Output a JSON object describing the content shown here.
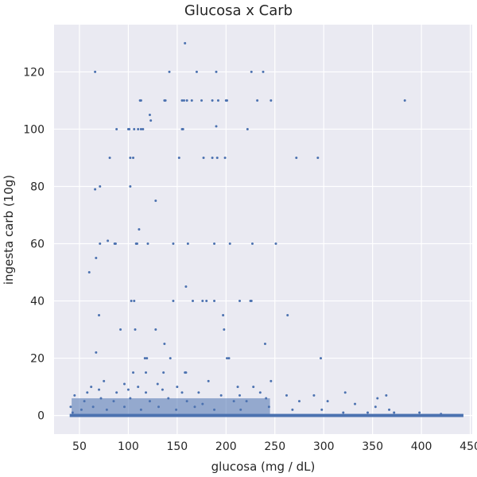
{
  "chart_data": {
    "type": "scatter",
    "title": "Glucosa x Carb",
    "xlabel": "glucosa (mg / dL)",
    "ylabel": "ingesta carb (10g)",
    "xlim": [
      24,
      452
    ],
    "ylim": [
      -6.5,
      136.5
    ],
    "xticks": [
      50,
      100,
      150,
      200,
      250,
      300,
      350,
      400,
      450
    ],
    "yticks": [
      0,
      20,
      40,
      60,
      80,
      100,
      120
    ],
    "grid": true,
    "background_color": "#eaeaf2",
    "marker_color": "#4c72b0",
    "points": [
      [
        66,
        120
      ],
      [
        142,
        120
      ],
      [
        170,
        120
      ],
      [
        190,
        120
      ],
      [
        226,
        120
      ],
      [
        238,
        120
      ],
      [
        158,
        130
      ],
      [
        112,
        110
      ],
      [
        113,
        110
      ],
      [
        137,
        110
      ],
      [
        138,
        110
      ],
      [
        155,
        110
      ],
      [
        157,
        110
      ],
      [
        160,
        110
      ],
      [
        165,
        110
      ],
      [
        175,
        110
      ],
      [
        186,
        110
      ],
      [
        192,
        110
      ],
      [
        200,
        110
      ],
      [
        201,
        110
      ],
      [
        232,
        110
      ],
      [
        246,
        110
      ],
      [
        383,
        110
      ],
      [
        122,
        105
      ],
      [
        123,
        103
      ],
      [
        190,
        101
      ],
      [
        88,
        100
      ],
      [
        100,
        100
      ],
      [
        101,
        100
      ],
      [
        106,
        100
      ],
      [
        110,
        100
      ],
      [
        113,
        100
      ],
      [
        115,
        100
      ],
      [
        155,
        100
      ],
      [
        156,
        100
      ],
      [
        222,
        100
      ],
      [
        81,
        90
      ],
      [
        102,
        90
      ],
      [
        105,
        90
      ],
      [
        152,
        90
      ],
      [
        177,
        90
      ],
      [
        186,
        90
      ],
      [
        191,
        90
      ],
      [
        199,
        90
      ],
      [
        272,
        90
      ],
      [
        294,
        90
      ],
      [
        66,
        79
      ],
      [
        71,
        80
      ],
      [
        102,
        80
      ],
      [
        128,
        75
      ],
      [
        111,
        65
      ],
      [
        71,
        60
      ],
      [
        79,
        61
      ],
      [
        86,
        60
      ],
      [
        87,
        60
      ],
      [
        108,
        60
      ],
      [
        109,
        60
      ],
      [
        120,
        60
      ],
      [
        146,
        60
      ],
      [
        161,
        60
      ],
      [
        188,
        60
      ],
      [
        204,
        60
      ],
      [
        227,
        60
      ],
      [
        251,
        60
      ],
      [
        60,
        50
      ],
      [
        67,
        55
      ],
      [
        159,
        45
      ],
      [
        103,
        40
      ],
      [
        106,
        40
      ],
      [
        146,
        40
      ],
      [
        166,
        40
      ],
      [
        176,
        40
      ],
      [
        180,
        40
      ],
      [
        188,
        40
      ],
      [
        214,
        40
      ],
      [
        225,
        40
      ],
      [
        226,
        40
      ],
      [
        70,
        35
      ],
      [
        197,
        35
      ],
      [
        263,
        35
      ],
      [
        92,
        30
      ],
      [
        107,
        30
      ],
      [
        128,
        30
      ],
      [
        198,
        30
      ],
      [
        137,
        25
      ],
      [
        240,
        25
      ],
      [
        67,
        22
      ],
      [
        117,
        20
      ],
      [
        119,
        20
      ],
      [
        143,
        20
      ],
      [
        201,
        20
      ],
      [
        203,
        20
      ],
      [
        297,
        20
      ],
      [
        105,
        15
      ],
      [
        118,
        15
      ],
      [
        136,
        15
      ],
      [
        158,
        15
      ],
      [
        159,
        15
      ],
      [
        62,
        10
      ],
      [
        75,
        12
      ],
      [
        96,
        11
      ],
      [
        110,
        10
      ],
      [
        130,
        11
      ],
      [
        150,
        10
      ],
      [
        182,
        12
      ],
      [
        212,
        10
      ],
      [
        246,
        12
      ],
      [
        228,
        10
      ],
      [
        45,
        7
      ],
      [
        58,
        8
      ],
      [
        70,
        9
      ],
      [
        88,
        8
      ],
      [
        100,
        9
      ],
      [
        118,
        8
      ],
      [
        135,
        9
      ],
      [
        155,
        8
      ],
      [
        172,
        8
      ],
      [
        195,
        7
      ],
      [
        214,
        7
      ],
      [
        235,
        8
      ],
      [
        262,
        7
      ],
      [
        290,
        7
      ],
      [
        322,
        8
      ],
      [
        355,
        6
      ],
      [
        364,
        7
      ],
      [
        41,
        3
      ],
      [
        55,
        5
      ],
      [
        72,
        6
      ],
      [
        85,
        5
      ],
      [
        102,
        6
      ],
      [
        122,
        5
      ],
      [
        141,
        6
      ],
      [
        160,
        5
      ],
      [
        176,
        4
      ],
      [
        208,
        5
      ],
      [
        221,
        5
      ],
      [
        241,
        6
      ],
      [
        275,
        5
      ],
      [
        304,
        5
      ],
      [
        332,
        4
      ],
      [
        353,
        3
      ],
      [
        367,
        2
      ],
      [
        43,
        1
      ],
      [
        52,
        2
      ],
      [
        64,
        3
      ],
      [
        78,
        2
      ],
      [
        96,
        3
      ],
      [
        113,
        2
      ],
      [
        131,
        3
      ],
      [
        149,
        2
      ],
      [
        168,
        3
      ],
      [
        188,
        2
      ],
      [
        215,
        2
      ],
      [
        244,
        3
      ],
      [
        268,
        2
      ],
      [
        298,
        2
      ],
      [
        320,
        1
      ],
      [
        345,
        1
      ],
      [
        372,
        1
      ],
      [
        398,
        1
      ],
      [
        420,
        0.5
      ]
    ]
  }
}
